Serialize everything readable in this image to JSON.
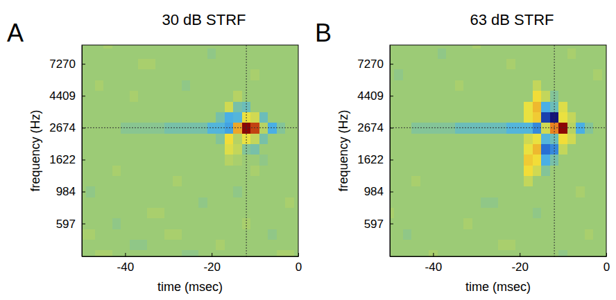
{
  "chart_data": [
    {
      "type": "heatmap",
      "panel_label": "A",
      "title": "30 dB STRF",
      "xlabel": "time (msec)",
      "ylabel": "frequency (Hz)",
      "log": "y",
      "xlim": [
        -50,
        0
      ],
      "ylim": [
        357,
        9760
      ],
      "xticks": [
        -40,
        -20,
        0
      ],
      "yticks": [
        597,
        984,
        1622,
        2674,
        4409,
        7270
      ],
      "zlim": [
        -1,
        1
      ],
      "crosshair": {
        "x": -12,
        "y": 2674
      },
      "x": [
        -50,
        -48,
        -46,
        -44,
        -42,
        -40,
        -38,
        -36,
        -34,
        -32,
        -30,
        -28,
        -26,
        -24,
        -22,
        -20,
        -18,
        -16,
        -14,
        -12,
        -10,
        -8,
        -6,
        -4,
        -2,
        0
      ],
      "y": [
        363,
        429,
        507,
        598,
        707,
        835,
        986,
        1164,
        1375,
        1624,
        1918,
        2264,
        2674,
        3158,
        3730,
        4405,
        5202,
        6144,
        7256,
        8569,
        10120
      ],
      "z": [
        [
          0,
          0,
          0.05,
          0.05,
          0,
          0,
          0,
          0,
          0,
          0,
          0,
          0,
          -0.05,
          -0.05,
          0,
          0,
          0,
          0,
          0,
          0,
          0,
          0,
          0,
          0.05,
          0.05,
          0
        ],
        [
          0,
          0,
          0,
          0,
          0,
          0,
          -0.05,
          -0.05,
          0,
          0,
          0,
          0,
          0,
          0,
          0,
          0,
          0.05,
          0,
          0,
          0,
          0,
          0,
          0,
          0,
          0,
          0
        ],
        [
          0.05,
          0.05,
          0,
          0,
          0,
          0,
          0,
          0,
          0,
          0,
          0.05,
          0.05,
          0,
          0,
          0,
          0,
          0,
          0,
          0,
          0,
          0,
          0,
          -0.05,
          0,
          0,
          0
        ],
        [
          0,
          0,
          0,
          0,
          -0.05,
          0,
          0,
          0,
          0,
          0,
          0,
          0,
          0,
          0,
          0,
          0,
          0,
          0,
          0,
          0.05,
          0,
          0,
          0,
          0,
          0,
          0
        ],
        [
          0,
          0,
          0,
          0,
          0,
          0,
          0,
          0,
          0.05,
          0.05,
          0,
          0,
          0,
          0,
          0,
          0,
          0,
          0,
          0,
          0,
          0,
          0,
          0,
          0,
          0,
          0
        ],
        [
          0,
          0,
          0,
          0,
          0,
          0,
          0,
          0,
          0,
          0,
          0,
          0,
          0,
          0,
          -0.05,
          0,
          0,
          0,
          0,
          0,
          0,
          0,
          0,
          0,
          0.05,
          0
        ],
        [
          0,
          -0.05,
          0,
          0,
          0,
          0,
          0,
          0,
          0,
          0,
          0,
          0,
          0,
          0,
          0,
          0,
          0,
          0,
          -0.05,
          0,
          0,
          0,
          0,
          0,
          0,
          0
        ],
        [
          0,
          0,
          0,
          0,
          0,
          0,
          0,
          0,
          0,
          0,
          0,
          0.05,
          0,
          0,
          0,
          0,
          0,
          0,
          0,
          0,
          0,
          0,
          0,
          0,
          0,
          0
        ],
        [
          0,
          0,
          0,
          0,
          0.05,
          0,
          0,
          0,
          0,
          0,
          0,
          0,
          0,
          0,
          0,
          0,
          0,
          0,
          0,
          0,
          0.05,
          0,
          0,
          0,
          0,
          0
        ],
        [
          0,
          0,
          0,
          0,
          0,
          0,
          0,
          0,
          0,
          0,
          0,
          0,
          0,
          0,
          0,
          0,
          0,
          0.1,
          0.05,
          0,
          0,
          -0.05,
          0,
          0,
          0,
          0
        ],
        [
          0,
          0,
          0,
          0,
          0,
          0,
          0,
          0,
          0,
          0,
          0,
          0,
          0,
          0,
          0,
          0,
          0,
          0.25,
          0.15,
          -0.1,
          -0.15,
          0,
          0,
          0,
          0,
          0
        ],
        [
          0,
          0,
          0,
          0,
          0,
          0,
          0,
          0,
          0,
          0,
          0,
          0,
          0,
          0,
          0,
          0,
          -0.1,
          0.35,
          0.1,
          0.3,
          0.15,
          -0.15,
          0,
          0,
          0,
          0
        ],
        [
          0,
          0,
          0,
          0,
          0,
          -0.08,
          -0.08,
          -0.08,
          -0.08,
          -0.08,
          -0.15,
          -0.15,
          -0.15,
          -0.15,
          -0.15,
          -0.3,
          -0.3,
          -0.4,
          0.5,
          1,
          0.8,
          0.1,
          -0.35,
          -0.1,
          0,
          0
        ],
        [
          0,
          0,
          0,
          0,
          0,
          0,
          0,
          0,
          0,
          0,
          0,
          0,
          0,
          0,
          0,
          0,
          -0.15,
          -0.35,
          -0.3,
          0.3,
          0.2,
          -0.2,
          0,
          0,
          0,
          0
        ],
        [
          0,
          0,
          0,
          0,
          0,
          0,
          0,
          0,
          0,
          0,
          0,
          0,
          0,
          0,
          0,
          0,
          0,
          0.2,
          -0.15,
          -0.2,
          0,
          0,
          0,
          0,
          0,
          0
        ],
        [
          0,
          0,
          0,
          0,
          0,
          0,
          0.05,
          0,
          0,
          0,
          0,
          0,
          0,
          0,
          0,
          0,
          0,
          0,
          0.1,
          0,
          0,
          0,
          0,
          0,
          0,
          0
        ],
        [
          0,
          0,
          0.05,
          0,
          0,
          0,
          0,
          0,
          0,
          0,
          0,
          0,
          -0.05,
          0,
          0,
          0,
          0,
          0,
          0,
          0,
          0,
          0,
          0,
          0,
          0,
          0
        ],
        [
          0,
          0,
          0,
          0,
          0,
          0,
          0,
          0,
          0,
          0,
          0,
          0,
          0,
          0,
          0,
          0,
          0,
          0,
          0,
          0,
          0.05,
          0,
          0,
          0,
          0,
          0
        ],
        [
          0,
          0,
          0,
          0,
          0,
          0,
          0,
          0.05,
          0.05,
          0,
          0,
          0,
          0,
          0,
          0,
          0,
          0,
          0,
          0,
          0,
          0,
          0,
          0,
          0,
          0,
          0
        ],
        [
          0,
          0,
          0,
          0,
          0,
          0,
          0,
          0,
          0,
          0,
          0,
          0,
          0,
          0,
          0,
          -0.05,
          0,
          0,
          0,
          0,
          0,
          0,
          0,
          0,
          0,
          0
        ],
        [
          0,
          0,
          0,
          0.05,
          0,
          0,
          0,
          0,
          0,
          0,
          0,
          0,
          0,
          0,
          0,
          0,
          0,
          0,
          0,
          0,
          0,
          0,
          0,
          0,
          0,
          0
        ]
      ]
    },
    {
      "type": "heatmap",
      "panel_label": "B",
      "title": "63 dB STRF",
      "xlabel": "time (msec)",
      "ylabel": "frequency (Hz)",
      "log": "y",
      "xlim": [
        -50,
        0
      ],
      "ylim": [
        357,
        9760
      ],
      "xticks": [
        -40,
        -20,
        0
      ],
      "yticks": [
        597,
        984,
        1622,
        2674,
        4409,
        7270
      ],
      "zlim": [
        -1,
        1
      ],
      "crosshair": {
        "x": -12,
        "y": 2674
      },
      "x": [
        -50,
        -48,
        -46,
        -44,
        -42,
        -40,
        -38,
        -36,
        -34,
        -32,
        -30,
        -28,
        -26,
        -24,
        -22,
        -20,
        -18,
        -16,
        -14,
        -12,
        -10,
        -8,
        -6,
        -4,
        -2,
        0
      ],
      "y": [
        363,
        429,
        507,
        598,
        707,
        835,
        986,
        1164,
        1375,
        1624,
        1918,
        2264,
        2674,
        3158,
        3730,
        4405,
        5202,
        6144,
        7256,
        8569,
        10120
      ],
      "z": [
        [
          0,
          0,
          0,
          0,
          0,
          0.05,
          0,
          0,
          0,
          0,
          0,
          0,
          0,
          0,
          0,
          0,
          0,
          0,
          0,
          0,
          -0.05,
          0,
          0,
          0,
          0,
          0
        ],
        [
          0,
          0,
          0,
          0,
          0,
          0,
          0,
          0,
          0,
          0,
          0,
          0,
          0,
          0.05,
          0.05,
          0,
          0,
          0,
          0,
          0,
          0,
          0,
          0,
          0,
          0,
          0
        ],
        [
          0,
          0,
          -0.05,
          0,
          0,
          0,
          0,
          0,
          0,
          0,
          0,
          0,
          0,
          0,
          0,
          0,
          0,
          0,
          0,
          0,
          0,
          0,
          0,
          0.05,
          0,
          0
        ],
        [
          0,
          0,
          0,
          0,
          0,
          0,
          0,
          0,
          0,
          0.05,
          0,
          0,
          0,
          0,
          0,
          0,
          0,
          0,
          0,
          0,
          0,
          0,
          0,
          0,
          0,
          0
        ],
        [
          0.05,
          0,
          0,
          0,
          0,
          0,
          0,
          0,
          0,
          0,
          0,
          0,
          0,
          0,
          0,
          0,
          0,
          -0.05,
          0,
          0,
          0,
          0,
          0,
          0,
          0,
          0
        ],
        [
          0,
          0,
          0,
          0,
          0,
          0,
          0,
          0,
          0,
          0,
          0,
          -0.05,
          -0.05,
          0,
          0,
          0,
          0,
          0,
          0,
          0,
          0,
          0,
          0,
          0,
          0,
          0
        ],
        [
          0,
          0,
          0,
          0,
          0,
          0,
          0,
          0,
          0,
          0,
          0,
          0,
          0,
          0,
          0,
          0,
          0,
          0,
          0,
          0,
          0,
          0,
          0.05,
          0,
          0,
          0
        ],
        [
          0,
          0,
          0,
          0.05,
          0,
          0,
          0,
          0,
          0,
          0,
          0,
          0,
          0,
          0,
          0,
          0,
          0.15,
          0,
          0,
          0,
          0,
          0,
          0,
          0,
          0,
          0
        ],
        [
          0,
          0,
          0,
          0,
          0,
          0,
          0,
          0,
          0,
          0,
          0,
          0,
          0,
          0,
          0,
          0,
          0.35,
          0.2,
          -0.1,
          0,
          0,
          0,
          0,
          0,
          0,
          0
        ],
        [
          0,
          0,
          0,
          0,
          0,
          0,
          0,
          0,
          0,
          0,
          0,
          0,
          0,
          0,
          0,
          0,
          0.4,
          0.35,
          -0.35,
          -0.15,
          0,
          0,
          0,
          0,
          0,
          0
        ],
        [
          0,
          0,
          0,
          0,
          0,
          0,
          0,
          0,
          0,
          0,
          0,
          0,
          0,
          0,
          0,
          0,
          0.3,
          0.45,
          -0.6,
          -0.5,
          0.15,
          0,
          0,
          0,
          0,
          0
        ],
        [
          0,
          0,
          0,
          0,
          0,
          0,
          0,
          0,
          0,
          0,
          0,
          0,
          0,
          0,
          0,
          0,
          0.2,
          0.3,
          -0.3,
          -0.2,
          0.35,
          0.2,
          0,
          0,
          0,
          0
        ],
        [
          0,
          0,
          0,
          -0.1,
          -0.1,
          -0.1,
          -0.1,
          -0.1,
          -0.2,
          -0.2,
          -0.2,
          -0.2,
          -0.2,
          -0.2,
          -0.3,
          -0.3,
          -0.3,
          -0.5,
          0.2,
          0.6,
          1,
          0.1,
          -0.35,
          -0.1,
          0,
          0
        ],
        [
          0,
          0,
          0,
          0,
          0,
          0,
          0,
          0,
          0,
          0,
          0,
          0,
          0,
          0,
          0,
          0,
          0.3,
          0.4,
          -0.8,
          -1,
          0.3,
          0.15,
          0,
          0,
          0,
          0
        ],
        [
          0,
          0,
          0,
          0,
          0,
          0,
          0,
          0,
          0,
          0,
          0,
          0,
          0,
          0,
          0,
          0,
          0.3,
          0.45,
          -0.35,
          -0.2,
          0.25,
          0,
          0,
          0,
          0,
          0
        ],
        [
          0,
          0,
          0,
          0,
          0,
          0,
          0,
          0,
          0,
          0,
          0,
          0,
          0,
          0,
          0,
          0,
          0,
          0.35,
          0.15,
          -0.1,
          0,
          0,
          0,
          0,
          0,
          0
        ],
        [
          0,
          0,
          0,
          0,
          0,
          0,
          0,
          0,
          0.05,
          0,
          0,
          0,
          0,
          0,
          0,
          0,
          0,
          0.15,
          0,
          0,
          0,
          0,
          0,
          0,
          0,
          0
        ],
        [
          0,
          -0.05,
          0,
          0,
          0,
          0,
          0,
          0,
          0,
          0,
          0,
          0,
          0,
          0,
          0,
          0,
          0,
          0,
          0,
          0,
          0,
          0,
          0,
          0,
          0.05,
          0
        ],
        [
          0,
          0,
          0,
          0,
          0,
          0,
          0,
          0,
          0,
          0,
          0,
          0,
          0,
          0,
          0.05,
          0,
          0,
          0,
          0,
          0,
          0,
          0,
          0,
          0,
          0,
          0
        ],
        [
          0,
          0,
          0,
          0,
          0,
          0,
          -0.05,
          0,
          0,
          0,
          0,
          0,
          0,
          0,
          0,
          0,
          0,
          0,
          0,
          0,
          0,
          0.05,
          0,
          0,
          0,
          0
        ],
        [
          0,
          0,
          0,
          0,
          0,
          0,
          0,
          0,
          0,
          0,
          0.05,
          0,
          0,
          0,
          0,
          0,
          0,
          0,
          0,
          0,
          0,
          0,
          0,
          0,
          0,
          0
        ]
      ]
    }
  ]
}
